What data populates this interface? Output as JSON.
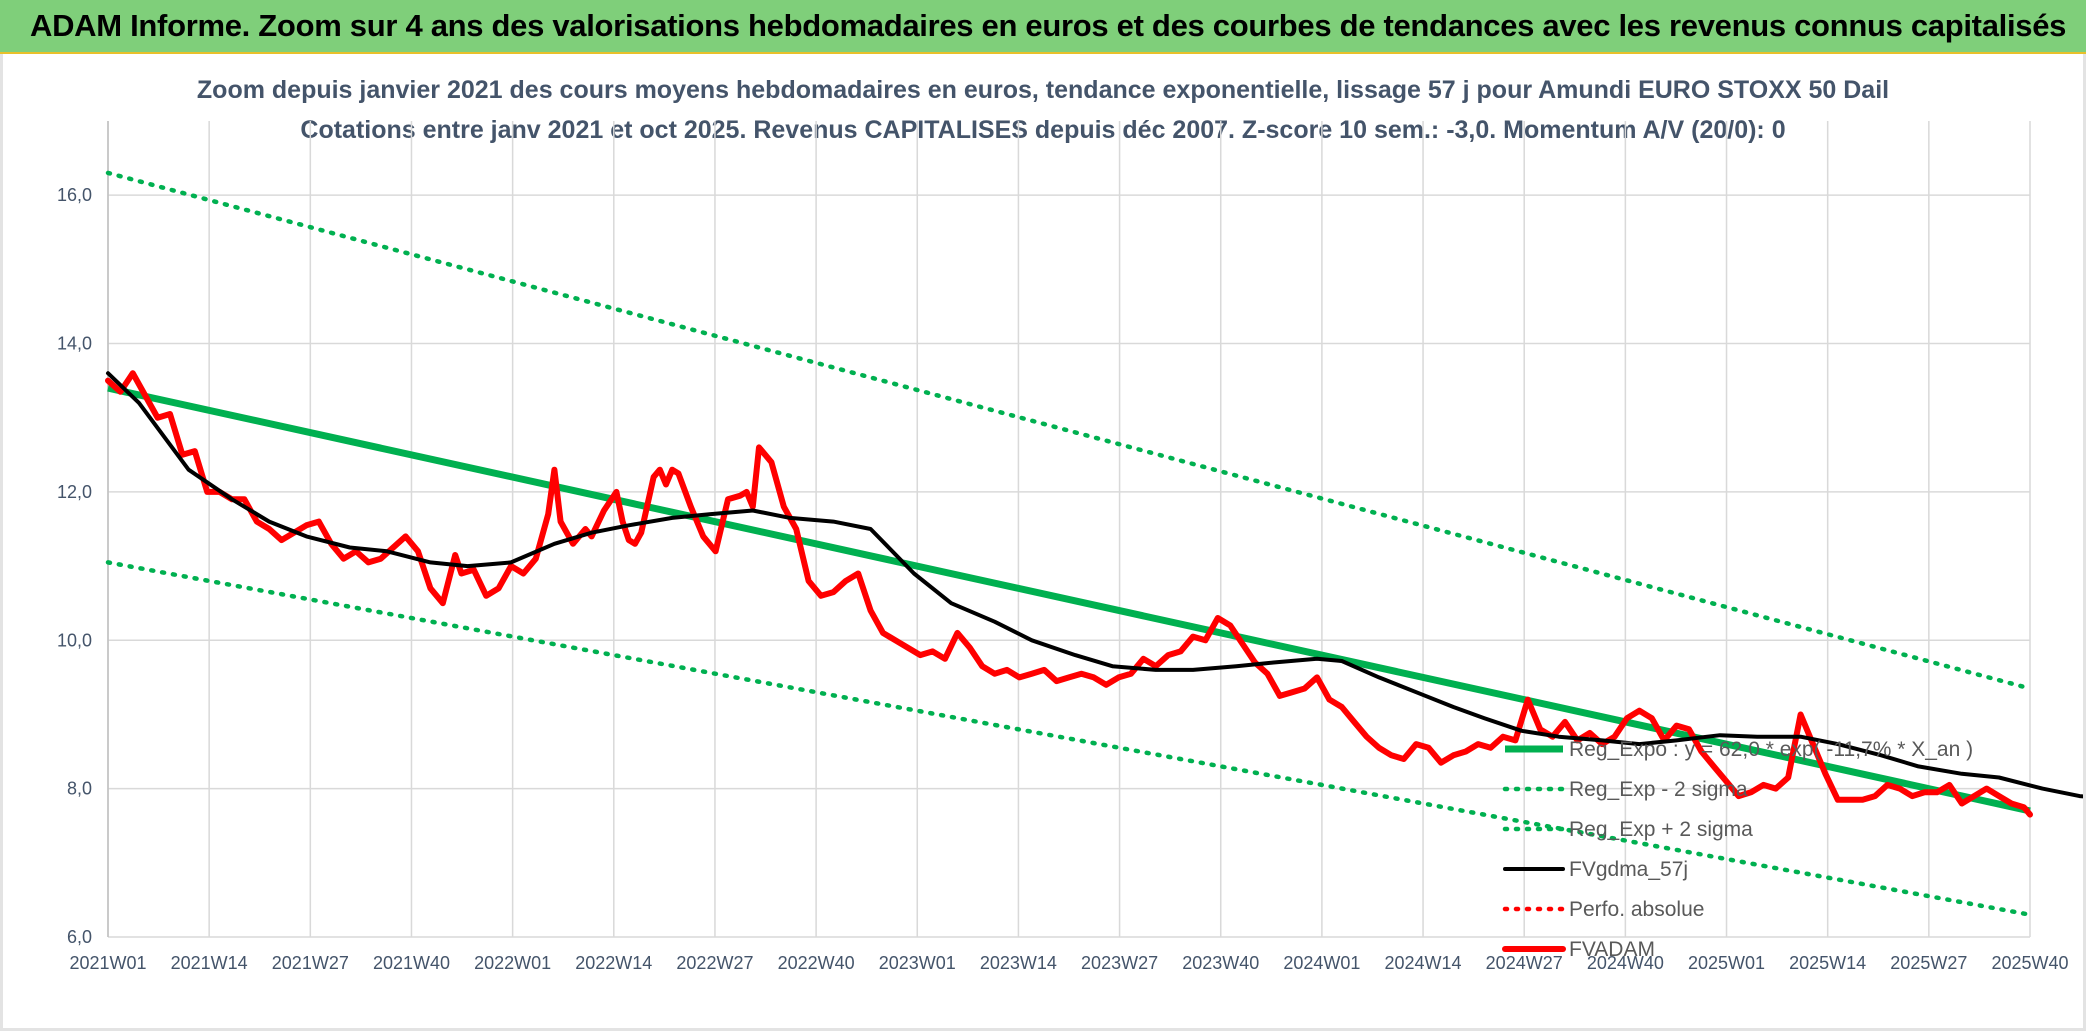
{
  "header": {
    "title": "ADAM Informe. Zoom sur 4 ans des valorisations hebdomadaires en euros et des courbes de tendances avec les revenus connus capitalisés"
  },
  "chart_data": {
    "type": "line",
    "title_line1": "Zoom depuis janvier 2021 des cours moyens hebdomadaires en euros, tendance exponentielle, lissage 57 j pour Amundi EURO STOXX 50 Dail",
    "title_line2": "Cotations entre janv 2021 et oct 2025. Revenus CAPITALISES depuis déc 2007. Z-score 10 sem.: -3,0. Momentum A/V (20/0): 0",
    "xlabel": "",
    "ylabel": "",
    "ylim": [
      6,
      17
    ],
    "yticks": [
      "6,0",
      "8,0",
      "10,0",
      "12,0",
      "14,0",
      "16,0"
    ],
    "x_tick_labels": [
      "2021W01",
      "2021W14",
      "2021W27",
      "2021W40",
      "2022W01",
      "2022W14",
      "2022W27",
      "2022W40",
      "2023W01",
      "2023W14",
      "2023W27",
      "2023W40",
      "2024W01",
      "2024W14",
      "2024W27",
      "2024W40",
      "2025W01",
      "2025W14",
      "2025W27",
      "2025W40"
    ],
    "grid": true,
    "legend_position": "right",
    "series": [
      {
        "name": "Reg_Expo : y = 62,0 * exp( -11,7% *  X_an )",
        "color": "#00b050",
        "style": "solid",
        "points": [
          [
            0,
            13.4
          ],
          [
            247,
            7.7
          ]
        ]
      },
      {
        "name": "Reg_Exp - 2 sigma",
        "color": "#00b050",
        "style": "dotted",
        "points": [
          [
            0,
            11.05
          ],
          [
            247,
            6.3
          ]
        ]
      },
      {
        "name": "Reg_Exp + 2 sigma",
        "color": "#00b050",
        "style": "dotted",
        "points": [
          [
            0,
            16.3
          ],
          [
            247,
            9.35
          ]
        ]
      },
      {
        "name": "FVgdma_57j",
        "color": "#000000",
        "style": "solid",
        "points": [
          [
            0,
            13.6
          ],
          [
            5,
            13.2
          ],
          [
            13,
            12.3
          ],
          [
            20,
            11.9
          ],
          [
            26,
            11.6
          ],
          [
            32,
            11.4
          ],
          [
            39,
            11.25
          ],
          [
            45,
            11.2
          ],
          [
            52,
            11.05
          ],
          [
            58,
            11.0
          ],
          [
            65,
            11.05
          ],
          [
            72,
            11.3
          ],
          [
            78,
            11.45
          ],
          [
            84,
            11.55
          ],
          [
            91,
            11.65
          ],
          [
            97,
            11.7
          ],
          [
            104,
            11.75
          ],
          [
            110,
            11.65
          ],
          [
            117,
            11.6
          ],
          [
            123,
            11.5
          ],
          [
            130,
            10.9
          ],
          [
            136,
            10.5
          ],
          [
            143,
            10.25
          ],
          [
            149,
            10.0
          ],
          [
            156,
            9.8
          ],
          [
            162,
            9.65
          ],
          [
            169,
            9.6
          ],
          [
            175,
            9.6
          ],
          [
            182,
            9.65
          ],
          [
            188,
            9.7
          ],
          [
            195,
            9.75
          ],
          [
            199,
            9.72
          ],
          [
            205,
            9.5
          ],
          [
            211,
            9.3
          ],
          [
            217,
            9.1
          ],
          [
            222,
            8.95
          ],
          [
            228,
            8.78
          ],
          [
            234,
            8.7
          ],
          [
            241,
            8.65
          ],
          [
            247,
            8.6
          ],
          [
            253,
            8.65
          ],
          [
            260,
            8.72
          ],
          [
            266,
            8.7
          ],
          [
            273,
            8.7
          ],
          [
            279,
            8.6
          ],
          [
            286,
            8.45
          ],
          [
            292,
            8.3
          ],
          [
            299,
            8.2
          ],
          [
            305,
            8.15
          ],
          [
            312,
            8.0
          ],
          [
            318,
            7.9
          ],
          [
            325,
            7.85
          ],
          [
            331,
            7.8
          ],
          [
            338,
            7.75
          ],
          [
            342,
            7.7
          ]
        ]
      },
      {
        "name": "Perfo. absolue",
        "color": "#ff0000",
        "style": "dotted",
        "points": []
      },
      {
        "name": "FVADAM",
        "color": "#ff0000",
        "style": "solid",
        "points": [
          [
            0,
            13.5
          ],
          [
            2,
            13.35
          ],
          [
            4,
            13.6
          ],
          [
            6,
            13.3
          ],
          [
            8,
            13.0
          ],
          [
            10,
            13.05
          ],
          [
            12,
            12.5
          ],
          [
            14,
            12.55
          ],
          [
            16,
            12.0
          ],
          [
            18,
            12.0
          ],
          [
            20,
            11.9
          ],
          [
            22,
            11.9
          ],
          [
            24,
            11.6
          ],
          [
            26,
            11.5
          ],
          [
            28,
            11.35
          ],
          [
            30,
            11.45
          ],
          [
            32,
            11.55
          ],
          [
            34,
            11.6
          ],
          [
            36,
            11.3
          ],
          [
            38,
            11.1
          ],
          [
            40,
            11.2
          ],
          [
            42,
            11.05
          ],
          [
            44,
            11.1
          ],
          [
            46,
            11.25
          ],
          [
            48,
            11.4
          ],
          [
            50,
            11.2
          ],
          [
            52,
            10.7
          ],
          [
            54,
            10.5
          ],
          [
            56,
            11.15
          ],
          [
            57,
            10.9
          ],
          [
            59,
            10.95
          ],
          [
            61,
            10.6
          ],
          [
            63,
            10.7
          ],
          [
            65,
            11.0
          ],
          [
            67,
            10.9
          ],
          [
            69,
            11.1
          ],
          [
            71,
            11.7
          ],
          [
            72,
            12.3
          ],
          [
            73,
            11.6
          ],
          [
            75,
            11.3
          ],
          [
            77,
            11.5
          ],
          [
            78,
            11.4
          ],
          [
            80,
            11.75
          ],
          [
            82,
            12.0
          ],
          [
            83,
            11.6
          ],
          [
            84,
            11.35
          ],
          [
            85,
            11.3
          ],
          [
            86,
            11.45
          ],
          [
            88,
            12.2
          ],
          [
            89,
            12.3
          ],
          [
            90,
            12.1
          ],
          [
            91,
            12.3
          ],
          [
            92,
            12.25
          ],
          [
            94,
            11.8
          ],
          [
            96,
            11.4
          ],
          [
            98,
            11.2
          ],
          [
            100,
            11.9
          ],
          [
            102,
            11.95
          ],
          [
            103,
            12.0
          ],
          [
            104,
            11.8
          ],
          [
            105,
            12.6
          ],
          [
            107,
            12.4
          ],
          [
            109,
            11.8
          ],
          [
            111,
            11.5
          ],
          [
            113,
            10.8
          ],
          [
            115,
            10.6
          ],
          [
            117,
            10.65
          ],
          [
            119,
            10.8
          ],
          [
            121,
            10.9
          ],
          [
            123,
            10.4
          ],
          [
            125,
            10.1
          ],
          [
            127,
            10.0
          ],
          [
            129,
            9.9
          ],
          [
            131,
            9.8
          ],
          [
            133,
            9.85
          ],
          [
            135,
            9.75
          ],
          [
            137,
            10.1
          ],
          [
            139,
            9.9
          ],
          [
            141,
            9.65
          ],
          [
            143,
            9.55
          ],
          [
            145,
            9.6
          ],
          [
            147,
            9.5
          ],
          [
            149,
            9.55
          ],
          [
            151,
            9.6
          ],
          [
            153,
            9.45
          ],
          [
            155,
            9.5
          ],
          [
            157,
            9.55
          ],
          [
            159,
            9.5
          ],
          [
            161,
            9.4
          ],
          [
            163,
            9.5
          ],
          [
            165,
            9.55
          ],
          [
            167,
            9.75
          ],
          [
            169,
            9.65
          ],
          [
            171,
            9.8
          ],
          [
            173,
            9.85
          ],
          [
            175,
            10.05
          ],
          [
            177,
            10.0
          ],
          [
            179,
            10.3
          ],
          [
            181,
            10.2
          ],
          [
            183,
            9.95
          ],
          [
            185,
            9.7
          ],
          [
            187,
            9.55
          ],
          [
            189,
            9.25
          ],
          [
            191,
            9.3
          ],
          [
            193,
            9.35
          ],
          [
            195,
            9.5
          ],
          [
            197,
            9.2
          ],
          [
            199,
            9.1
          ],
          [
            201,
            8.9
          ],
          [
            203,
            8.7
          ],
          [
            205,
            8.55
          ],
          [
            207,
            8.45
          ],
          [
            209,
            8.4
          ],
          [
            211,
            8.6
          ],
          [
            213,
            8.55
          ],
          [
            215,
            8.35
          ],
          [
            217,
            8.45
          ],
          [
            219,
            8.5
          ],
          [
            221,
            8.6
          ],
          [
            223,
            8.55
          ],
          [
            225,
            8.7
          ],
          [
            227,
            8.65
          ],
          [
            229,
            9.2
          ],
          [
            231,
            8.8
          ],
          [
            233,
            8.7
          ],
          [
            235,
            8.9
          ],
          [
            237,
            8.65
          ],
          [
            239,
            8.75
          ],
          [
            241,
            8.6
          ],
          [
            243,
            8.7
          ],
          [
            245,
            8.95
          ],
          [
            247,
            9.05
          ],
          [
            249,
            8.95
          ],
          [
            251,
            8.65
          ],
          [
            253,
            8.85
          ],
          [
            255,
            8.8
          ],
          [
            257,
            8.5
          ],
          [
            259,
            8.3
          ],
          [
            261,
            8.1
          ],
          [
            263,
            7.9
          ],
          [
            265,
            7.95
          ],
          [
            267,
            8.05
          ],
          [
            269,
            8.0
          ],
          [
            271,
            8.15
          ],
          [
            273,
            9.0
          ],
          [
            275,
            8.6
          ],
          [
            277,
            8.2
          ],
          [
            279,
            7.85
          ],
          [
            281,
            7.85
          ],
          [
            283,
            7.85
          ],
          [
            285,
            7.9
          ],
          [
            287,
            8.05
          ],
          [
            289,
            8.0
          ],
          [
            291,
            7.9
          ],
          [
            293,
            7.95
          ],
          [
            295,
            7.95
          ],
          [
            297,
            8.05
          ],
          [
            299,
            7.8
          ],
          [
            301,
            7.9
          ],
          [
            303,
            8.0
          ],
          [
            305,
            7.9
          ],
          [
            307,
            7.8
          ],
          [
            309,
            7.75
          ],
          [
            310,
            7.65
          ]
        ]
      }
    ]
  }
}
